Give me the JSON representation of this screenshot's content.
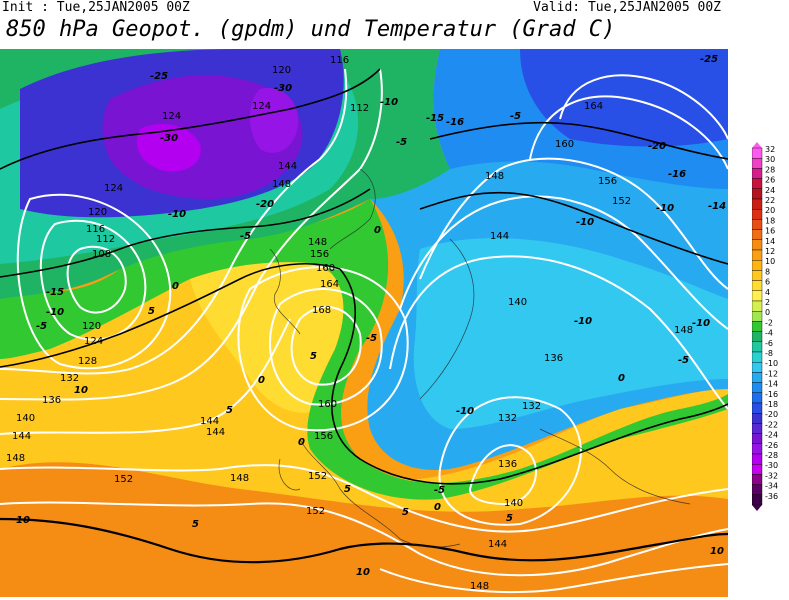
{
  "header": {
    "init": "Init : Tue,25JAN2005 00Z",
    "valid": "Valid: Tue,25JAN2005 00Z",
    "title": "850 hPa Geopot. (gpdm) und Temperatur (Grad C)"
  },
  "legend": {
    "values": [
      "32",
      "30",
      "28",
      "26",
      "24",
      "22",
      "20",
      "18",
      "16",
      "14",
      "12",
      "10",
      "8",
      "6",
      "4",
      "2",
      "0",
      "-2",
      "-4",
      "-6",
      "-8",
      "-10",
      "-12",
      "-14",
      "-16",
      "-18",
      "-20",
      "-22",
      "-24",
      "-26",
      "-28",
      "-30",
      "-32",
      "-34",
      "-36"
    ],
    "colors": [
      "#ff5af0",
      "#f040c8",
      "#d81e8c",
      "#c8143c",
      "#b4141e",
      "#c81e14",
      "#dc3214",
      "#e65014",
      "#f06e14",
      "#f58c14",
      "#fa9e14",
      "#ffb414",
      "#ffc81e",
      "#ffdc32",
      "#fff050",
      "#d2f050",
      "#a0e650",
      "#32c832",
      "#1eb464",
      "#1ec8a0",
      "#28d2d2",
      "#32c8f0",
      "#28aaf0",
      "#1e8cf0",
      "#1e6ef0",
      "#2850e6",
      "#3c32d2",
      "#5a28d2",
      "#7814d2",
      "#9614e6",
      "#b400f0",
      "#c800f0",
      "#8c008c",
      "#5a0064",
      "#3c0046"
    ]
  },
  "labels": {
    "geopot": [
      "116",
      "120",
      "124",
      "112",
      "144",
      "148",
      "160",
      "156",
      "164",
      "152",
      "136",
      "140",
      "168",
      "108",
      "128",
      "132"
    ],
    "temp": [
      "-25",
      "-30",
      "-20",
      "-15",
      "-10",
      "-5",
      "0",
      "5",
      "10",
      "-16",
      "-14"
    ]
  }
}
